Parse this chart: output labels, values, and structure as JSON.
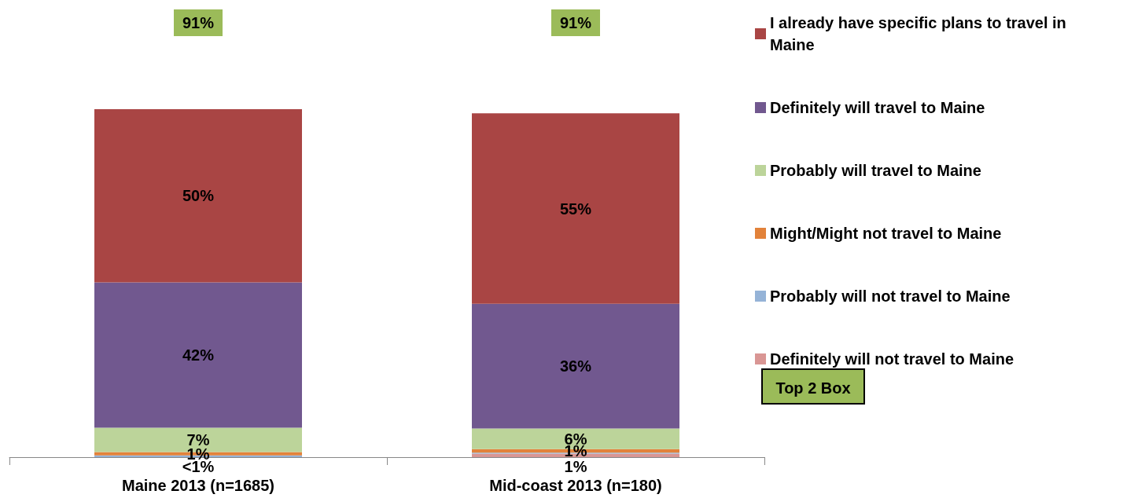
{
  "chart_data": {
    "type": "bar",
    "stacked": true,
    "legend": "right",
    "categories": [
      "Maine 2013 (n=1685)",
      "Mid-coast 2013 (n=180)"
    ],
    "series": [
      {
        "name": "Definitely will not travel to Maine",
        "color": "#d99694",
        "values": [
          null,
          1
        ],
        "value_labels": [
          null,
          "1%"
        ]
      },
      {
        "name": "Probably will not travel to Maine",
        "color": "#95b3d7",
        "values": [
          0.5,
          0.3
        ],
        "value_labels": [
          "<1%",
          null
        ]
      },
      {
        "name": "Might/Might not travel to Maine",
        "color": "#e2823a",
        "values": [
          1,
          1
        ],
        "value_labels": [
          "1%",
          "1%"
        ]
      },
      {
        "name": "Probably will travel to Maine",
        "color": "#bcd49a",
        "values": [
          7,
          6
        ],
        "value_labels": [
          "7%",
          "6%"
        ]
      },
      {
        "name": "Definitely will travel to Maine",
        "color": "#71588f",
        "values": [
          42,
          36
        ],
        "value_labels": [
          "42%",
          "36%"
        ]
      },
      {
        "name": "I already have specific plans to travel in Maine",
        "color": "#a94544",
        "values": [
          50,
          55
        ],
        "value_labels": [
          "50%",
          "55%"
        ]
      }
    ],
    "annotations": [
      "91%",
      "91%",
      "Top 2 Box"
    ]
  }
}
